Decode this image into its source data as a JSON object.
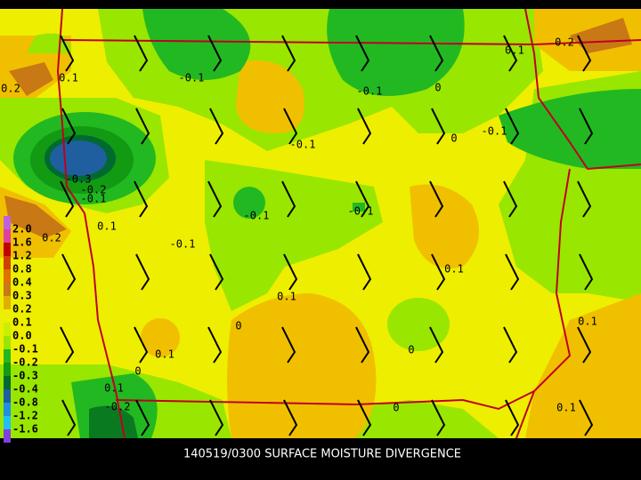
{
  "caption": "140519/0300 SURFACE MOISTURE DIVERGENCE",
  "colorbar": {
    "labels": [
      "2.0",
      "1.6",
      "1.2",
      "0.8",
      "0.4",
      "0.3",
      "0.2",
      "0.1",
      "0.0",
      "-0.1",
      "-0.2",
      "-0.3",
      "-0.4",
      "-0.8",
      "-1.2",
      "-1.6"
    ]
  },
  "contour_labels": [
    "-0.1",
    "0.2",
    "0.1",
    "-0.1",
    "0",
    "0.1",
    "0.2",
    "-0.1",
    "0",
    "-0.1",
    "-0.3",
    "-0.2",
    "-0.1",
    "-0.1",
    "-0.1",
    "0.1",
    "0.2",
    "-0.1",
    "0.1",
    "0.1",
    "0",
    "0",
    "0.1",
    "0.1",
    "0",
    "0.1",
    "-0.2",
    "0",
    "0.1"
  ]
}
